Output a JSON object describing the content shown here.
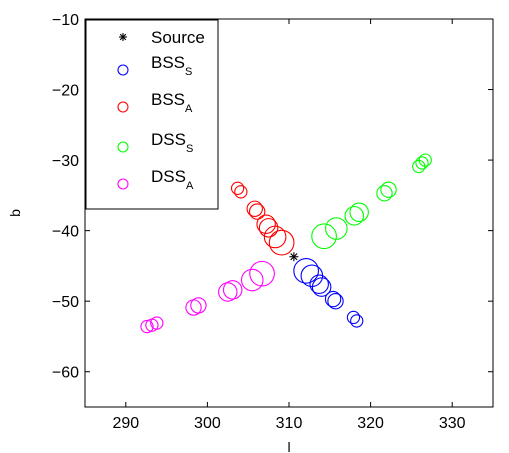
{
  "chart_data": {
    "type": "scatter",
    "xlabel": "l",
    "ylabel": "b",
    "xlim": [
      285,
      335
    ],
    "ylim": [
      -65,
      -10
    ],
    "xticks": [
      290,
      300,
      310,
      320,
      330
    ],
    "yticks": [
      -60,
      -50,
      -40,
      -30,
      -20,
      -10
    ],
    "xtick_labels": [
      "290",
      "300",
      "310",
      "320",
      "330"
    ],
    "ytick_labels": [
      "−60",
      "−50",
      "−40",
      "−30",
      "−20",
      "−10"
    ],
    "grid": false,
    "legend_position": "top-left",
    "source": {
      "name": "Source",
      "marker": "asterisk",
      "color": "#000000",
      "x": 310.6,
      "y": -43.7
    },
    "series": [
      {
        "name": "BSS",
        "subscript": "S",
        "color": "#0000ff",
        "marker": "circle",
        "points": [
          {
            "x": 312.1,
            "y": -45.7,
            "size": 6
          },
          {
            "x": 312.8,
            "y": -46.4,
            "size": 5
          },
          {
            "x": 313.7,
            "y": -47.6,
            "size": 4
          },
          {
            "x": 314.0,
            "y": -48.0,
            "size": 4
          },
          {
            "x": 315.4,
            "y": -49.7,
            "size": 3
          },
          {
            "x": 315.7,
            "y": -50.0,
            "size": 3
          },
          {
            "x": 317.9,
            "y": -52.3,
            "size": 2
          },
          {
            "x": 318.3,
            "y": -52.8,
            "size": 2
          }
        ]
      },
      {
        "name": "BSS",
        "subscript": "A",
        "color": "#ff0000",
        "marker": "circle",
        "points": [
          {
            "x": 303.7,
            "y": -34.0,
            "size": 2
          },
          {
            "x": 304.1,
            "y": -34.5,
            "size": 2
          },
          {
            "x": 305.8,
            "y": -36.9,
            "size": 3
          },
          {
            "x": 306.1,
            "y": -37.3,
            "size": 3
          },
          {
            "x": 307.2,
            "y": -39.1,
            "size": 4
          },
          {
            "x": 307.5,
            "y": -39.6,
            "size": 4
          },
          {
            "x": 308.3,
            "y": -40.9,
            "size": 5
          },
          {
            "x": 309.1,
            "y": -41.7,
            "size": 6
          }
        ]
      },
      {
        "name": "DSS",
        "subscript": "S",
        "color": "#00ff00",
        "marker": "circle",
        "points": [
          {
            "x": 314.3,
            "y": -40.8,
            "size": 6
          },
          {
            "x": 315.8,
            "y": -39.7,
            "size": 5
          },
          {
            "x": 318.0,
            "y": -37.9,
            "size": 4
          },
          {
            "x": 318.6,
            "y": -37.4,
            "size": 4
          },
          {
            "x": 321.7,
            "y": -34.7,
            "size": 3
          },
          {
            "x": 322.2,
            "y": -34.2,
            "size": 3
          },
          {
            "x": 325.9,
            "y": -30.9,
            "size": 2
          },
          {
            "x": 326.3,
            "y": -30.4,
            "size": 2
          },
          {
            "x": 326.7,
            "y": -30.0,
            "size": 2
          }
        ]
      },
      {
        "name": "DSS",
        "subscript": "A",
        "color": "#ff00ff",
        "marker": "circle",
        "points": [
          {
            "x": 292.6,
            "y": -53.6,
            "size": 2
          },
          {
            "x": 293.2,
            "y": -53.4,
            "size": 2
          },
          {
            "x": 293.8,
            "y": -53.1,
            "size": 2
          },
          {
            "x": 298.3,
            "y": -50.9,
            "size": 3
          },
          {
            "x": 298.9,
            "y": -50.6,
            "size": 3
          },
          {
            "x": 302.5,
            "y": -48.7,
            "size": 4
          },
          {
            "x": 303.1,
            "y": -48.4,
            "size": 4
          },
          {
            "x": 305.5,
            "y": -47.0,
            "size": 5
          },
          {
            "x": 306.7,
            "y": -46.1,
            "size": 6
          }
        ]
      }
    ]
  }
}
